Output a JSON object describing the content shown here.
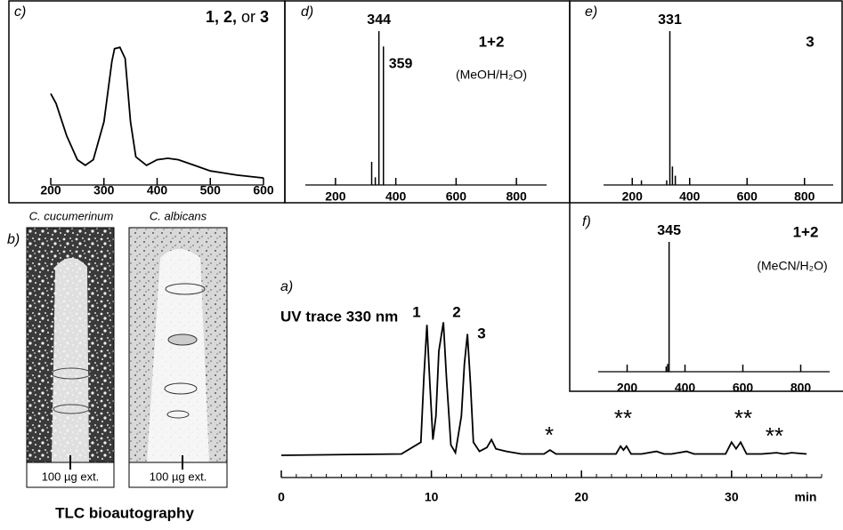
{
  "chart_data": [
    {
      "type": "line",
      "label": "a)",
      "title": "UV trace 330 nm",
      "color": "#000000",
      "x": [
        0,
        8,
        9.3,
        9.5,
        9.7,
        9.9,
        10.1,
        10.3,
        10.5,
        10.8,
        11.0,
        11.3,
        11.6,
        12.0,
        12.2,
        12.4,
        12.6,
        12.8,
        13.2,
        13.7,
        14.0,
        14.3,
        15,
        16,
        17.5,
        17.9,
        18.3,
        20,
        22.3,
        22.6,
        22.8,
        23.0,
        23.3,
        24,
        25,
        25.5,
        26,
        27,
        27.5,
        29.6,
        30.0,
        30.3,
        30.6,
        31.0,
        32,
        33,
        33.5,
        34,
        35
      ],
      "values": [
        0,
        1,
        10,
        60,
        100,
        55,
        12,
        30,
        80,
        102,
        60,
        8,
        2,
        30,
        70,
        93,
        55,
        10,
        3,
        6,
        12,
        5,
        3,
        1,
        1,
        4,
        1,
        1,
        1,
        7,
        4,
        7,
        1,
        1,
        3,
        1,
        1,
        3,
        1,
        1,
        10,
        5,
        10,
        1,
        1,
        2,
        1,
        2,
        1
      ],
      "xlim": [
        0,
        36
      ],
      "xticks": [
        0,
        10,
        20,
        30
      ],
      "minor_tick_step": 1,
      "x_label": "min",
      "ylim": [
        0,
        105
      ],
      "peak_labels": [
        "1",
        "2",
        "3"
      ],
      "annotations": [
        "*",
        "**",
        "**",
        "**"
      ]
    },
    {
      "type": "line",
      "label": "c)",
      "title_parts": [
        "1, 2,",
        "or",
        "3"
      ],
      "color": "#000000",
      "x": [
        200,
        210,
        230,
        250,
        265,
        280,
        300,
        315,
        320,
        330,
        340,
        350,
        360,
        380,
        400,
        420,
        440,
        470,
        500,
        550,
        600
      ],
      "values": [
        65,
        58,
        35,
        18,
        14,
        18,
        45,
        88,
        97,
        98,
        90,
        45,
        20,
        14,
        18,
        19,
        18,
        14,
        10,
        7,
        5
      ],
      "xlim": [
        200,
        600
      ],
      "xticks": [
        200,
        300,
        400,
        500,
        600
      ],
      "ylim": [
        0,
        100
      ]
    },
    {
      "type": "stem",
      "label": "d)",
      "title": "1+2",
      "subtitle": "(MeOH/H₂O)",
      "color": "#000000",
      "x": [
        320,
        332,
        344,
        359
      ],
      "values": [
        15,
        5,
        100,
        90
      ],
      "xlim": [
        100,
        900
      ],
      "xticks": [
        200,
        400,
        600,
        800
      ],
      "ylim": [
        0,
        100
      ]
    },
    {
      "type": "stem",
      "label": "e)",
      "title": "3",
      "color": "#000000",
      "x": [
        232,
        320,
        331,
        340,
        350
      ],
      "values": [
        3,
        3,
        100,
        12,
        6
      ],
      "xlim": [
        100,
        900
      ],
      "xticks": [
        200,
        400,
        600,
        800
      ],
      "ylim": [
        0,
        100
      ]
    },
    {
      "type": "stem",
      "label": "f)",
      "title": "1+2",
      "subtitle": "(MeCN/H₂O)",
      "color": "#000000",
      "x": [
        335,
        340,
        345
      ],
      "values": [
        4,
        6,
        100
      ],
      "xlim": [
        100,
        900
      ],
      "xticks": [
        200,
        400,
        600,
        800
      ],
      "ylim": [
        0,
        100
      ]
    }
  ],
  "tlc": {
    "label": "b)",
    "title": "TLC bioautography",
    "plates": [
      {
        "organism": "C. cucumerinum",
        "amount": "100 µg ext."
      },
      {
        "organism": "C. albicans",
        "amount": "100 µg ext."
      }
    ]
  }
}
